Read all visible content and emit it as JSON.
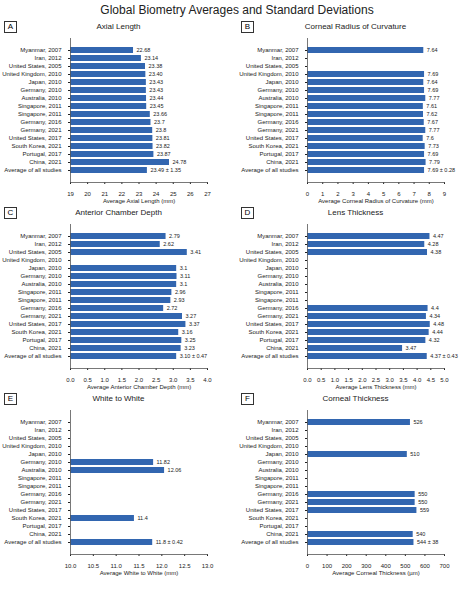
{
  "title": "Global Biometry Averages and Standard Deviations",
  "chart_data": [
    {
      "type": "bar",
      "panel_label": "A",
      "title": "Axial Length",
      "orientation": "horizontal",
      "color": "#3266b0",
      "data_labels": true,
      "categories": [
        "Myanmar, 2007",
        "Iran, 2012",
        "United States, 2005",
        "United Kingdom, 2010",
        "Japan, 2010",
        "Germany, 2010",
        "Australia, 2010",
        "Singapore, 2011",
        "Singapore, 2011",
        "Germany, 2016",
        "Germany, 2021",
        "United States, 2017",
        "South Korea, 2021",
        "Portugal, 2017",
        "China, 2021",
        "Average of all studies"
      ],
      "values": [
        22.68,
        23.14,
        23.38,
        23.4,
        23.43,
        23.43,
        23.44,
        23.45,
        23.66,
        23.7,
        23.8,
        23.81,
        23.82,
        23.87,
        24.78,
        23.49
      ],
      "value_labels": [
        "22.68",
        "23.14",
        "23.38",
        "23.40",
        "23.43",
        "23.43",
        "23.44",
        "23.45",
        "23.66",
        "23.7",
        "23.8",
        "23.81",
        "23.82",
        "23.87",
        "24.78",
        "23.49 ± 1.35"
      ],
      "xlabel": "Average Axial Length (mm)",
      "xlim": [
        19,
        27
      ],
      "xticks": [
        19,
        20,
        21,
        22,
        23,
        24,
        25,
        26,
        27
      ]
    },
    {
      "type": "bar",
      "panel_label": "B",
      "title": "Corneal Radius of Curvature",
      "orientation": "horizontal",
      "color": "#3266b0",
      "data_labels": true,
      "categories": [
        "Myanmar, 2007",
        "Iran, 2012",
        "United States, 2005",
        "United Kingdom, 2010",
        "Japan, 2010",
        "Germany, 2010",
        "Australia, 2010",
        "Singapore, 2011",
        "Singapore, 2011",
        "Germany, 2016",
        "Germany, 2021",
        "United States, 2017",
        "South Korea, 2021",
        "Portugal, 2017",
        "China, 2021",
        "Average of all studies"
      ],
      "values": [
        7.64,
        null,
        null,
        7.69,
        7.64,
        7.69,
        7.77,
        7.61,
        7.62,
        7.67,
        7.77,
        7.6,
        7.73,
        7.69,
        7.79,
        7.69
      ],
      "value_labels": [
        "7.64",
        null,
        null,
        "7.69",
        "7.64",
        "7.69",
        "7.77",
        "7.61",
        "7.62",
        "7.67",
        "7.77",
        "7.6",
        "7.73",
        "7.69",
        "7.79",
        "7.69 ± 0.28"
      ],
      "xlabel": "Average Corneal Radius of Curvature (mm)",
      "xlim": [
        0,
        9
      ],
      "xticks": [
        0,
        1,
        2,
        3,
        4,
        5,
        6,
        7,
        8,
        9
      ]
    },
    {
      "type": "bar",
      "panel_label": "C",
      "title": "Anterior Chamber Depth",
      "orientation": "horizontal",
      "color": "#3266b0",
      "data_labels": true,
      "categories": [
        "Myanmar, 2007",
        "Iran, 2012",
        "United States, 2005",
        "United Kingdom, 2010",
        "Japan, 2010",
        "Germany, 2010",
        "Australia, 2010",
        "Singapore, 2011",
        "Singapore, 2011",
        "Germany, 2016",
        "Germany, 2021",
        "United States, 2017",
        "South Korea, 2021",
        "Portugal, 2017",
        "China, 2021",
        "Average of all studies"
      ],
      "values": [
        2.79,
        2.62,
        3.41,
        null,
        3.1,
        3.11,
        3.1,
        2.96,
        2.93,
        2.72,
        3.27,
        3.37,
        3.16,
        3.25,
        3.23,
        3.1
      ],
      "value_labels": [
        "2.79",
        "2.62",
        "3.41",
        null,
        "3.1",
        "3.11",
        "3.1",
        "2.96",
        "2.93",
        "2.72",
        "3.27",
        "3.37",
        "3.16",
        "3.25",
        "3.23",
        "3.10 ± 0.47"
      ],
      "xlabel": "Average Anterior Chamber Depth (mm)",
      "xlim": [
        0,
        4
      ],
      "xticks": [
        0,
        0.5,
        1,
        1.5,
        2,
        2.5,
        3,
        3.5,
        4
      ]
    },
    {
      "type": "bar",
      "panel_label": "D",
      "title": "Lens Thickness",
      "orientation": "horizontal",
      "color": "#3266b0",
      "data_labels": true,
      "categories": [
        "Myanmar, 2007",
        "Iran, 2012",
        "United States, 2005",
        "United Kingdom, 2010",
        "Japan, 2010",
        "Germany, 2010",
        "Australia, 2010",
        "Singapore, 2011",
        "Singapore, 2011",
        "Germany, 2016",
        "Germany, 2021",
        "United States, 2017",
        "South Korea, 2021",
        "Portugal, 2017",
        "China, 2021",
        "Average of all studies"
      ],
      "values": [
        4.47,
        4.28,
        4.38,
        null,
        null,
        null,
        null,
        null,
        null,
        4.4,
        4.34,
        4.48,
        4.44,
        4.32,
        3.47,
        4.37
      ],
      "value_labels": [
        "4.47",
        "4.28",
        "4.38",
        null,
        null,
        null,
        null,
        null,
        null,
        "4.4",
        "4.34",
        "4.48",
        "4.44",
        "4.32",
        "3.47",
        "4.37 ± 0.43"
      ],
      "xlabel": "Average Lens Thickness (mm)",
      "xlim": [
        0,
        5
      ],
      "xticks": [
        0,
        0.5,
        1,
        1.5,
        2,
        2.5,
        3,
        3.5,
        4,
        4.5,
        5
      ]
    },
    {
      "type": "bar",
      "panel_label": "E",
      "title": "White to White",
      "orientation": "horizontal",
      "color": "#3266b0",
      "data_labels": true,
      "categories": [
        "Myanmar, 2007",
        "Iran, 2012",
        "United States, 2005",
        "United Kingdom, 2010",
        "Japan, 2010",
        "Germany, 2010",
        "Australia, 2010",
        "Singapore, 2011",
        "Singapore, 2011",
        "Germany, 2016",
        "Germany, 2021",
        "United States, 2017",
        "South Korea, 2021",
        "Portugal, 2017",
        "China, 2021",
        "Average of all studies"
      ],
      "values": [
        null,
        null,
        null,
        null,
        null,
        11.82,
        12.06,
        null,
        null,
        null,
        null,
        null,
        11.4,
        null,
        null,
        11.8
      ],
      "value_labels": [
        null,
        null,
        null,
        null,
        null,
        "11.82",
        "12.06",
        null,
        null,
        null,
        null,
        null,
        "11.4",
        null,
        null,
        "11.8 ± 0.42"
      ],
      "xlabel": "Average White to White (mm)",
      "xlim": [
        10,
        13
      ],
      "xticks": [
        10,
        10.5,
        11,
        11.5,
        12,
        12.5,
        13
      ]
    },
    {
      "type": "bar",
      "panel_label": "F",
      "title": "Corneal Thickness",
      "orientation": "horizontal",
      "color": "#3266b0",
      "data_labels": true,
      "categories": [
        "Myanmar, 2007",
        "Iran, 2012",
        "United States, 2005",
        "United Kingdom, 2010",
        "Japan, 2010",
        "Germany, 2010",
        "Australia, 2010",
        "Singapore, 2011",
        "Singapore, 2011",
        "Germany, 2016",
        "Germany, 2021",
        "United States, 2017",
        "South Korea, 2021",
        "Portugal, 2017",
        "China, 2021",
        "Average of all studies"
      ],
      "values": [
        526,
        null,
        null,
        null,
        510,
        null,
        null,
        null,
        null,
        550,
        550,
        559,
        null,
        null,
        540,
        544
      ],
      "value_labels": [
        "526",
        null,
        null,
        null,
        "510",
        null,
        null,
        null,
        null,
        "550",
        "550",
        "559",
        null,
        null,
        "540",
        "544 ± 38"
      ],
      "xlabel": "Average Corneal Thickness (µm)",
      "xlim": [
        0,
        700
      ],
      "xticks": [
        0,
        100,
        200,
        300,
        400,
        500,
        600,
        700
      ]
    }
  ]
}
